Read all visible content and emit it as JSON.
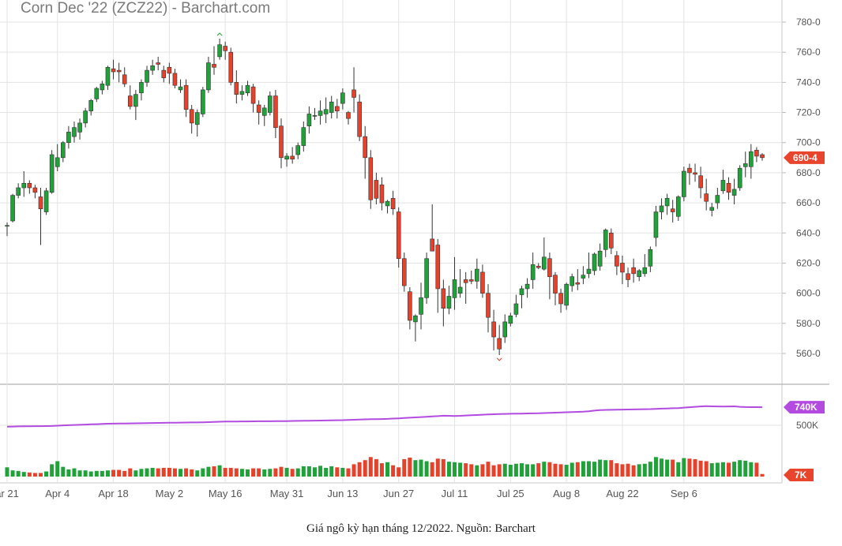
{
  "caption": "Giá ngô kỳ hạn tháng 12/2022. Nguồn: Barchart",
  "colors": {
    "up": "#21a139",
    "down": "#e5412b",
    "volume_line": "#b34be0",
    "price_tag": "#e8452c",
    "grid": "#e3e3e3"
  },
  "chart_data": {
    "type": "candlestick",
    "title": "Corn Dec '22 (ZCZ22) - Barchart.com",
    "price_axis": {
      "ticks": [
        "780-0",
        "760-0",
        "740-0",
        "720-0",
        "700-0",
        "680-0",
        "660-0",
        "640-0",
        "620-0",
        "600-0",
        "580-0",
        "560-0"
      ],
      "range": [
        550,
        785
      ]
    },
    "last_price_label": "690-4",
    "x_ticks": [
      "ar 21",
      "Apr 4",
      "Apr 18",
      "May 2",
      "May 16",
      "May 31",
      "Jun 13",
      "Jun 27",
      "Jul 11",
      "Jul 25",
      "Aug 8",
      "Aug 22",
      "Sep 6"
    ],
    "ohlc": [
      [
        645,
        647,
        638,
        645
      ],
      [
        648,
        666,
        647,
        665
      ],
      [
        665,
        673,
        663,
        670
      ],
      [
        670,
        681,
        664,
        673
      ],
      [
        673,
        675,
        666,
        670
      ],
      [
        670,
        672,
        663,
        667
      ],
      [
        664,
        670,
        632,
        656
      ],
      [
        654,
        670,
        652,
        668
      ],
      [
        667,
        695,
        666,
        692
      ],
      [
        684,
        699,
        681,
        690
      ],
      [
        690,
        701,
        687,
        700
      ],
      [
        700,
        711,
        696,
        707
      ],
      [
        704,
        714,
        700,
        710
      ],
      [
        707,
        716,
        702,
        713
      ],
      [
        713,
        723,
        710,
        721
      ],
      [
        721,
        729,
        718,
        728
      ],
      [
        729,
        737,
        727,
        736
      ],
      [
        735,
        741,
        732,
        739
      ],
      [
        738,
        751,
        735,
        750
      ],
      [
        749,
        755,
        742,
        747
      ],
      [
        748,
        753,
        740,
        747
      ],
      [
        745,
        750,
        737,
        739
      ],
      [
        731,
        738,
        722,
        724
      ],
      [
        724,
        735,
        715,
        732
      ],
      [
        733,
        742,
        728,
        740
      ],
      [
        740,
        751,
        737,
        748
      ],
      [
        748,
        755,
        745,
        751
      ],
      [
        753,
        757,
        748,
        752
      ],
      [
        748,
        751,
        740,
        743
      ],
      [
        750,
        753,
        739,
        746
      ],
      [
        746,
        749,
        736,
        738
      ],
      [
        735,
        742,
        733,
        737
      ],
      [
        738,
        742,
        717,
        722
      ],
      [
        722,
        725,
        706,
        713
      ],
      [
        712,
        722,
        704,
        720
      ],
      [
        719,
        737,
        717,
        735
      ],
      [
        735,
        757,
        733,
        753
      ],
      [
        752,
        764,
        745,
        750
      ],
      [
        757,
        769,
        755,
        765
      ],
      [
        764,
        767,
        755,
        761
      ],
      [
        760,
        763,
        738,
        740
      ],
      [
        740,
        748,
        726,
        732
      ],
      [
        732,
        738,
        728,
        734
      ],
      [
        733,
        741,
        731,
        738
      ],
      [
        737,
        739,
        720,
        726
      ],
      [
        725,
        728,
        712,
        720
      ],
      [
        718,
        725,
        711,
        723
      ],
      [
        720,
        734,
        718,
        731
      ],
      [
        731,
        735,
        703,
        710
      ],
      [
        711,
        716,
        683,
        690
      ],
      [
        689,
        693,
        684,
        691
      ],
      [
        691,
        697,
        686,
        689
      ],
      [
        692,
        700,
        689,
        698
      ],
      [
        698,
        714,
        694,
        710
      ],
      [
        711,
        724,
        706,
        719
      ],
      [
        718,
        723,
        715,
        718
      ],
      [
        718,
        728,
        712,
        721
      ],
      [
        719,
        730,
        713,
        722
      ],
      [
        720,
        731,
        716,
        727
      ],
      [
        724,
        729,
        716,
        721
      ],
      [
        726,
        736,
        722,
        733
      ],
      [
        720,
        721,
        712,
        716
      ],
      [
        735,
        750,
        720,
        730
      ],
      [
        727,
        732,
        701,
        704
      ],
      [
        704,
        711,
        676,
        690
      ],
      [
        690,
        695,
        656,
        662
      ],
      [
        675,
        680,
        659,
        663
      ],
      [
        672,
        677,
        655,
        660
      ],
      [
        658,
        662,
        653,
        661
      ],
      [
        663,
        668,
        652,
        656
      ],
      [
        654,
        657,
        617,
        623
      ],
      [
        623,
        627,
        601,
        605
      ],
      [
        601,
        604,
        576,
        582
      ],
      [
        581,
        586,
        568,
        585
      ],
      [
        586,
        607,
        576,
        597
      ],
      [
        597,
        627,
        593,
        623
      ],
      [
        636,
        659,
        629,
        628
      ],
      [
        632,
        636,
        587,
        603
      ],
      [
        603,
        609,
        578,
        590
      ],
      [
        590,
        605,
        586,
        598
      ],
      [
        597,
        624,
        589,
        609
      ],
      [
        600,
        616,
        597,
        604
      ],
      [
        609,
        614,
        593,
        607
      ],
      [
        609,
        615,
        606,
        608
      ],
      [
        608,
        623,
        603,
        616
      ],
      [
        614,
        619,
        597,
        600
      ],
      [
        600,
        606,
        574,
        584
      ],
      [
        581,
        589,
        562,
        571
      ],
      [
        570,
        579,
        559,
        563
      ],
      [
        571,
        586,
        567,
        581
      ],
      [
        580,
        587,
        578,
        585
      ],
      [
        586,
        599,
        584,
        593
      ],
      [
        599,
        605,
        590,
        603
      ],
      [
        603,
        610,
        597,
        606
      ],
      [
        609,
        627,
        603,
        619
      ],
      [
        618,
        620,
        616,
        617
      ],
      [
        616,
        637,
        615,
        624
      ],
      [
        623,
        627,
        596,
        611
      ],
      [
        612,
        614,
        592,
        600
      ],
      [
        600,
        603,
        587,
        593
      ],
      [
        592,
        607,
        589,
        606
      ],
      [
        605,
        613,
        601,
        611
      ],
      [
        607,
        616,
        602,
        606
      ],
      [
        610,
        618,
        606,
        612
      ],
      [
        613,
        627,
        610,
        616
      ],
      [
        615,
        627,
        612,
        626
      ],
      [
        618,
        633,
        615,
        628
      ],
      [
        629,
        643,
        624,
        642
      ],
      [
        640,
        643,
        626,
        630
      ],
      [
        625,
        628,
        612,
        618
      ],
      [
        620,
        625,
        606,
        614
      ],
      [
        613,
        617,
        604,
        609
      ],
      [
        617,
        623,
        607,
        613
      ],
      [
        611,
        616,
        608,
        615
      ],
      [
        613,
        626,
        611,
        617
      ],
      [
        618,
        631,
        614,
        629
      ],
      [
        637,
        658,
        631,
        654
      ],
      [
        654,
        663,
        649,
        658
      ],
      [
        658,
        666,
        652,
        663
      ],
      [
        656,
        662,
        647,
        654
      ],
      [
        651,
        665,
        648,
        664
      ],
      [
        664,
        684,
        661,
        681
      ],
      [
        683,
        686,
        672,
        680
      ],
      [
        680,
        686,
        674,
        679
      ],
      [
        678,
        684,
        663,
        670
      ],
      [
        666,
        676,
        655,
        661
      ],
      [
        655,
        660,
        651,
        657
      ],
      [
        660,
        670,
        656,
        665
      ],
      [
        668,
        682,
        666,
        675
      ],
      [
        673,
        677,
        662,
        667
      ],
      [
        665,
        676,
        659,
        669
      ],
      [
        670,
        685,
        668,
        683
      ],
      [
        684,
        694,
        677,
        686
      ],
      [
        684,
        699,
        676,
        694
      ],
      [
        695,
        697,
        687,
        691
      ],
      [
        692,
        693,
        688,
        690
      ]
    ],
    "volume_axis": {
      "labels": [
        "740K",
        "500K",
        "7K"
      ],
      "range": [
        0,
        780000
      ]
    },
    "volume_line": [
      486000,
      488000,
      489000,
      490000,
      491000,
      491500,
      491500,
      492000,
      493000,
      496000,
      499000,
      501000,
      503000,
      505000,
      507000,
      509000,
      511000,
      513000,
      515000,
      516000,
      517000,
      518000,
      518500,
      519000,
      520000,
      521000,
      522000,
      523000,
      524000,
      525000,
      525500,
      526000,
      527000,
      528000,
      528000,
      529000,
      531000,
      533000,
      535000,
      536000,
      537000,
      537000,
      537500,
      538000,
      538500,
      539000,
      539000,
      539500,
      540000,
      540000,
      541000,
      542000,
      543000,
      543500,
      544000,
      545000,
      546000,
      547000,
      548000,
      549000,
      550000,
      552000,
      554000,
      556000,
      558000,
      559000,
      560000,
      561000,
      562000,
      565000,
      568000,
      571000,
      574000,
      577000,
      580000,
      583000,
      586000,
      589000,
      593000,
      592000,
      591000,
      592000,
      595000,
      598000,
      600000,
      603000,
      606000,
      608000,
      610000,
      611000,
      612000,
      613000,
      614000,
      615000,
      616000,
      617000,
      619000,
      621000,
      623000,
      625000,
      627000,
      629000,
      631000,
      633000,
      637000,
      643000,
      648000,
      650000,
      651000,
      652000,
      653000,
      654000,
      655000,
      656000,
      657000,
      658000,
      660000,
      662000,
      664000,
      666000,
      668000,
      672000,
      676000,
      680000,
      684000,
      686000,
      685000,
      684000,
      683000,
      684000,
      685000,
      680000,
      678000,
      677000,
      677000,
      676000
    ],
    "volume_bars": [
      90000,
      60000,
      55000,
      45000,
      40000,
      35000,
      35000,
      50000,
      120000,
      150000,
      95000,
      70000,
      80000,
      60000,
      60000,
      50000,
      55000,
      55000,
      60000,
      65000,
      65000,
      55000,
      80000,
      60000,
      75000,
      80000,
      85000,
      80000,
      85000,
      85000,
      80000,
      75000,
      80000,
      70000,
      60000,
      80000,
      95000,
      100000,
      110000,
      85000,
      85000,
      80000,
      75000,
      70000,
      80000,
      80000,
      70000,
      75000,
      80000,
      95000,
      85000,
      75000,
      80000,
      100000,
      100000,
      90000,
      105000,
      85000,
      100000,
      90000,
      85000,
      80000,
      120000,
      140000,
      160000,
      190000,
      170000,
      130000,
      140000,
      110000,
      90000,
      170000,
      185000,
      160000,
      165000,
      150000,
      140000,
      175000,
      170000,
      145000,
      140000,
      135000,
      130000,
      120000,
      110000,
      120000,
      145000,
      110000,
      120000,
      125000,
      115000,
      125000,
      130000,
      120000,
      120000,
      130000,
      145000,
      140000,
      125000,
      120000,
      115000,
      135000,
      140000,
      150000,
      150000,
      145000,
      165000,
      160000,
      160000,
      130000,
      120000,
      125000,
      110000,
      120000,
      125000,
      145000,
      190000,
      175000,
      165000,
      165000,
      140000,
      180000,
      175000,
      170000,
      155000,
      150000,
      130000,
      135000,
      140000,
      135000,
      145000,
      160000,
      155000,
      140000,
      135000,
      25000
    ],
    "volume_bar_colors": "up-down by candle direction"
  }
}
